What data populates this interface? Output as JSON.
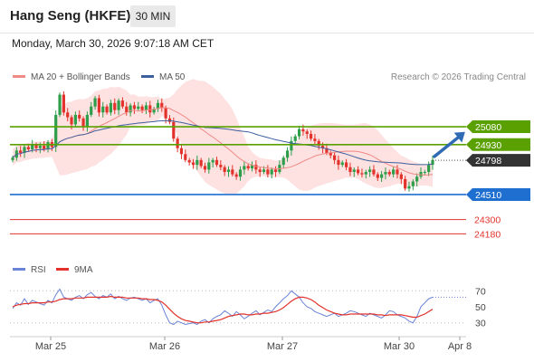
{
  "header": {
    "title": "Hang Seng (HKFE)",
    "timeframe": "30 MIN",
    "datetime": "Monday, March 30, 2026 9:07:18 AM CET"
  },
  "legend": {
    "ma_bollinger": "MA 20 + Bollinger Bands",
    "ma50": "MA 50",
    "rsi": "RSI",
    "ma9": "9MA",
    "credit": "Research © 2026 Trading Central"
  },
  "colors": {
    "ma20": "#f08a86",
    "bollinger_fill": "#fde2e1",
    "ma50": "#3d5f9e",
    "up": "#2e9e4a",
    "down": "#e3322b",
    "resistance": "#5aa000",
    "pivot": "#1f6fd1",
    "support": "#e3322b",
    "current": "#333333",
    "rsi": "#6b84d6",
    "rsi_ma": "#e3322b",
    "arrow": "#2f6bb5"
  },
  "chart_data": {
    "type": "candlestick",
    "x_ticks": [
      "Mar 25",
      "Mar 26",
      "Mar 27",
      "Mar 30",
      "Apr 8"
    ],
    "ylim": [
      24000,
      25400
    ],
    "levels": [
      {
        "value": 25080,
        "label": "25080",
        "kind": "resistance"
      },
      {
        "value": 24930,
        "label": "24930",
        "kind": "resistance"
      },
      {
        "value": 24798,
        "label": "24798",
        "kind": "current"
      },
      {
        "value": 24510,
        "label": "24510",
        "kind": "pivot"
      },
      {
        "value": 24300,
        "label": "24300",
        "kind": "support"
      },
      {
        "value": 24180,
        "label": "24180",
        "kind": "support"
      }
    ],
    "closes": [
      24820,
      24880,
      24860,
      24910,
      24890,
      24930,
      24900,
      24920,
      24890,
      24950,
      24910,
      25180,
      25350,
      25200,
      25160,
      25100,
      25180,
      25150,
      25080,
      25180,
      25250,
      25320,
      25200,
      25250,
      25200,
      25280,
      25220,
      25300,
      25250,
      25200,
      25260,
      25230,
      25250,
      25220,
      25260,
      25200,
      25230,
      25280,
      25240,
      25150,
      25120,
      24980,
      24900,
      24850,
      24800,
      24780,
      24760,
      24800,
      24750,
      24720,
      24780,
      24800,
      24760,
      24740,
      24700,
      24720,
      24680,
      24660,
      24720,
      24750,
      24730,
      24760,
      24720,
      24700,
      24720,
      24680,
      24720,
      24700,
      24760,
      24820,
      24880,
      24960,
      25000,
      25060,
      25040,
      25020,
      24980,
      24960,
      24920,
      24900,
      24860,
      24840,
      24800,
      24760,
      24780,
      24740,
      24700,
      24720,
      24690,
      24680,
      24700,
      24720,
      24680,
      24650,
      24680,
      24700,
      24680,
      24720,
      24680,
      24640,
      24560,
      24580,
      24620,
      24660,
      24700,
      24700,
      24760,
      24800
    ],
    "rsi": {
      "ticks": [
        70,
        50,
        30
      ],
      "ylim": [
        15,
        85
      ],
      "values": [
        48,
        55,
        52,
        60,
        53,
        58,
        56,
        54,
        52,
        58,
        55,
        65,
        72,
        62,
        60,
        58,
        62,
        64,
        60,
        65,
        68,
        63,
        60,
        64,
        62,
        66,
        60,
        63,
        60,
        58,
        61,
        62,
        60,
        58,
        60,
        55,
        58,
        60,
        52,
        40,
        30,
        28,
        32,
        30,
        28,
        29,
        30,
        28,
        32,
        34,
        30,
        35,
        38,
        40,
        45,
        42,
        38,
        44,
        40,
        35,
        38,
        42,
        45,
        40,
        43,
        46,
        44,
        50,
        55,
        60,
        64,
        70,
        66,
        62,
        55,
        50,
        48,
        44,
        42,
        40,
        38,
        40,
        42,
        38,
        40,
        42,
        45,
        44,
        42,
        40,
        38,
        42,
        40,
        38,
        36,
        40,
        45,
        44,
        40,
        38,
        36,
        32,
        30,
        38,
        50,
        55,
        60,
        62
      ],
      "ma": [
        50,
        52,
        53,
        54,
        54,
        55,
        55,
        55,
        55,
        56,
        56,
        57,
        59,
        60,
        60,
        60,
        61,
        61,
        61,
        62,
        62,
        62,
        62,
        62,
        62,
        63,
        62,
        62,
        62,
        61,
        61,
        61,
        61,
        60,
        60,
        59,
        59,
        58,
        56,
        52,
        47,
        42,
        38,
        35,
        33,
        32,
        31,
        30,
        30,
        31,
        31,
        32,
        33,
        34,
        36,
        38,
        39,
        40,
        41,
        41,
        40,
        40,
        41,
        41,
        42,
        42,
        43,
        44,
        46,
        49,
        53,
        57,
        60,
        62,
        62,
        61,
        59,
        56,
        52,
        49,
        46,
        44,
        42,
        41,
        40,
        40,
        41,
        41,
        41,
        41,
        41,
        41,
        41,
        40,
        40,
        39,
        40,
        40,
        40,
        40,
        39,
        38,
        37,
        37,
        39,
        41,
        44,
        47
      ]
    }
  }
}
